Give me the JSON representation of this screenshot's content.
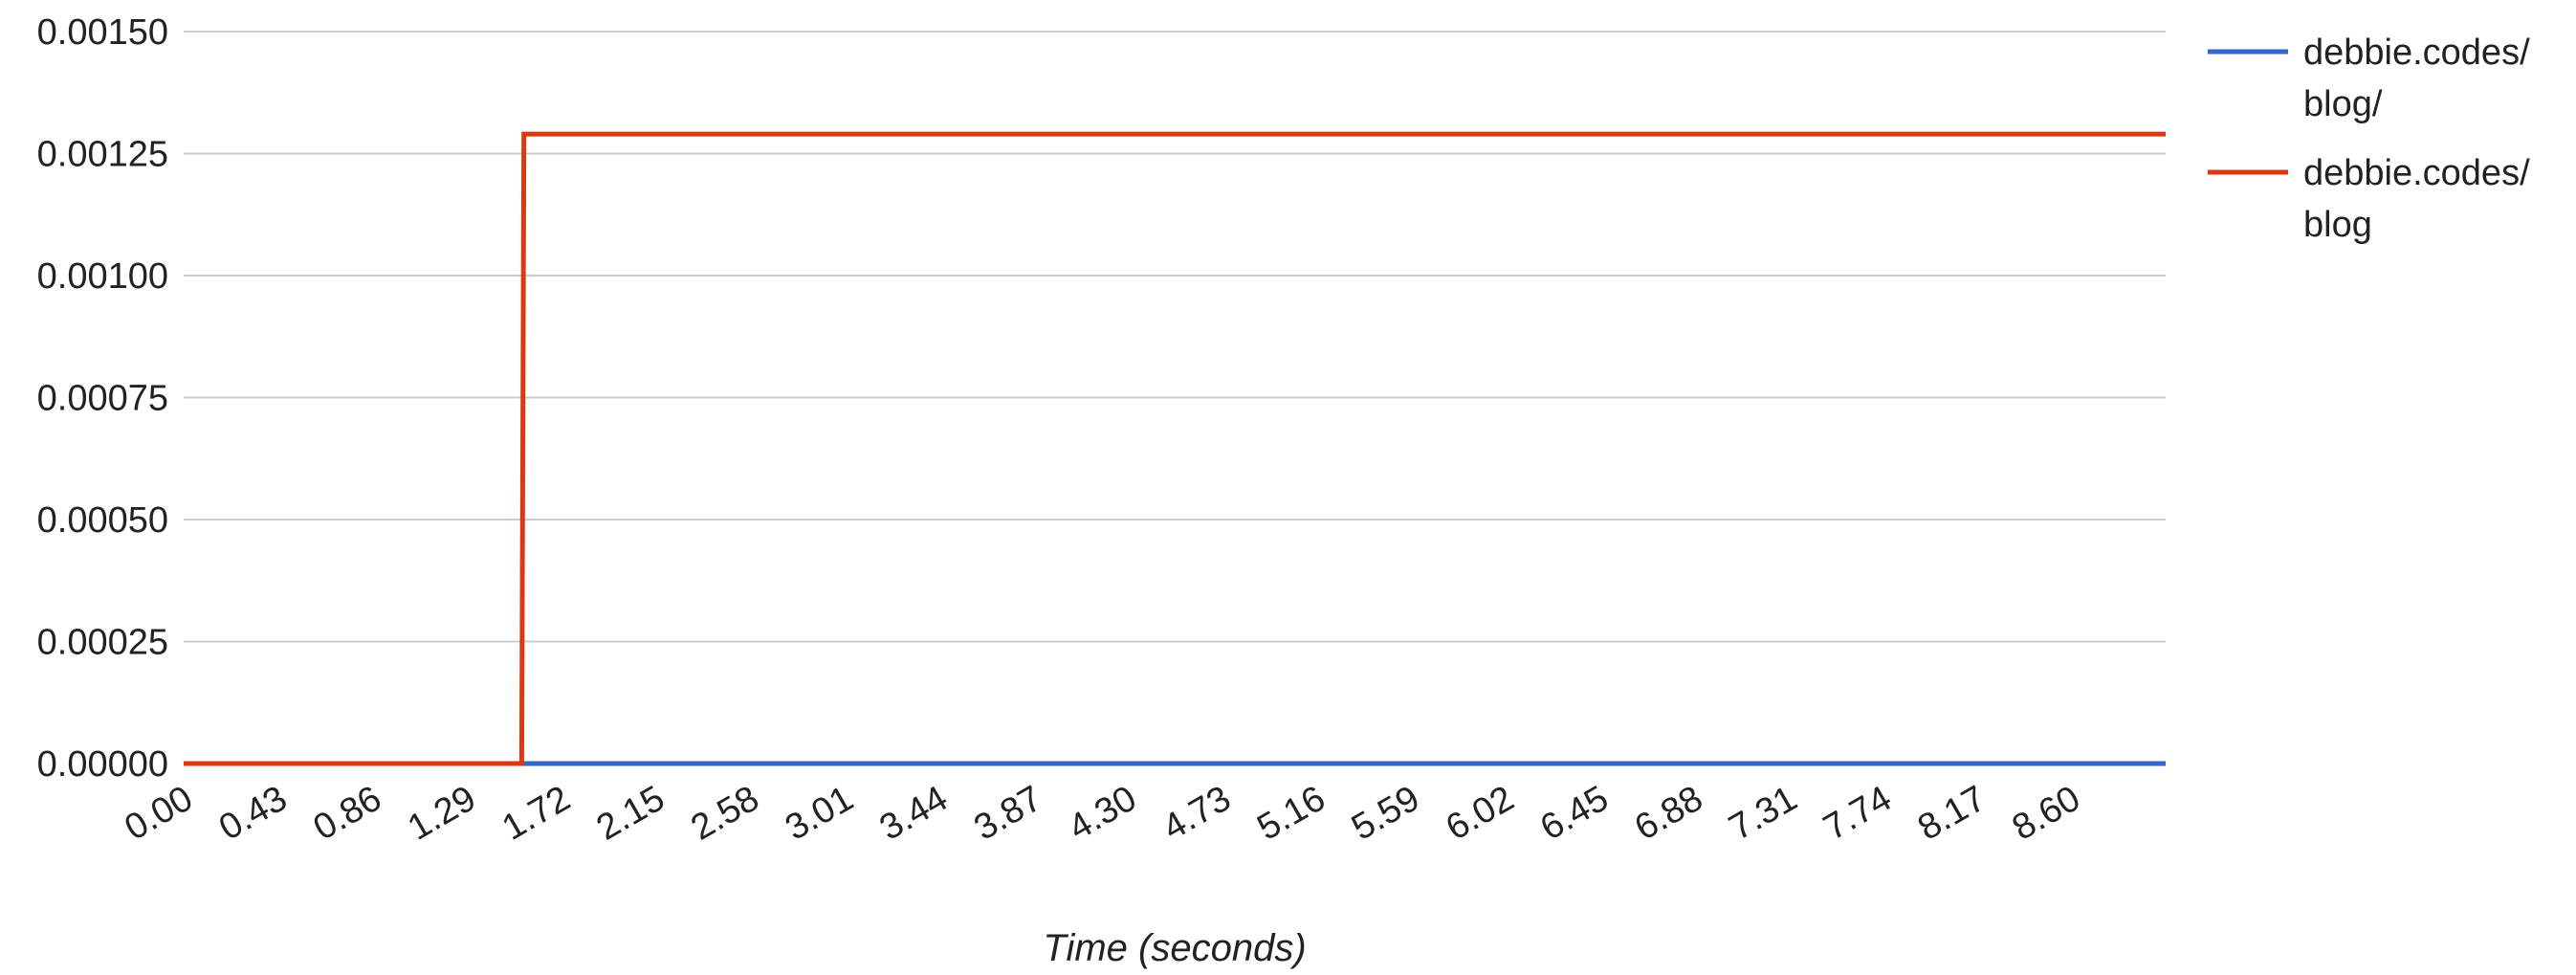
{
  "chart_data": {
    "type": "line",
    "title": "",
    "xlabel": "Time (seconds)",
    "ylabel": "",
    "xlim": [
      0.0,
      9.03
    ],
    "ylim": [
      0.0,
      0.0015
    ],
    "grid": true,
    "legend_position": "right",
    "x_ticks": [
      "0.00",
      "0.43",
      "0.86",
      "1.29",
      "1.72",
      "2.15",
      "2.58",
      "3.01",
      "3.44",
      "3.87",
      "4.30",
      "4.73",
      "5.16",
      "5.59",
      "6.02",
      "6.45",
      "6.88",
      "7.31",
      "7.74",
      "8.17",
      "8.60"
    ],
    "y_ticks": [
      "0.00000",
      "0.00025",
      "0.00050",
      "0.00075",
      "0.00100",
      "0.00125",
      "0.00150"
    ],
    "y_tick_values": [
      0.0,
      0.00025,
      0.0005,
      0.00075,
      0.001,
      0.00125,
      0.0015
    ],
    "series": [
      {
        "name": "debbie.codes/ blog/",
        "legend_lines": [
          "debbie.codes/",
          "blog/"
        ],
        "color": "#3366cc",
        "points": [
          [
            0.0,
            0.0
          ],
          [
            1.54,
            0.0
          ],
          [
            9.03,
            0.0
          ]
        ]
      },
      {
        "name": "debbie.codes/ blog",
        "legend_lines": [
          "debbie.codes/",
          "blog"
        ],
        "color": "#dc3912",
        "points": [
          [
            0.0,
            0.0
          ],
          [
            1.54,
            0.0
          ],
          [
            1.55,
            0.00129
          ],
          [
            9.03,
            0.00129
          ]
        ]
      }
    ]
  }
}
